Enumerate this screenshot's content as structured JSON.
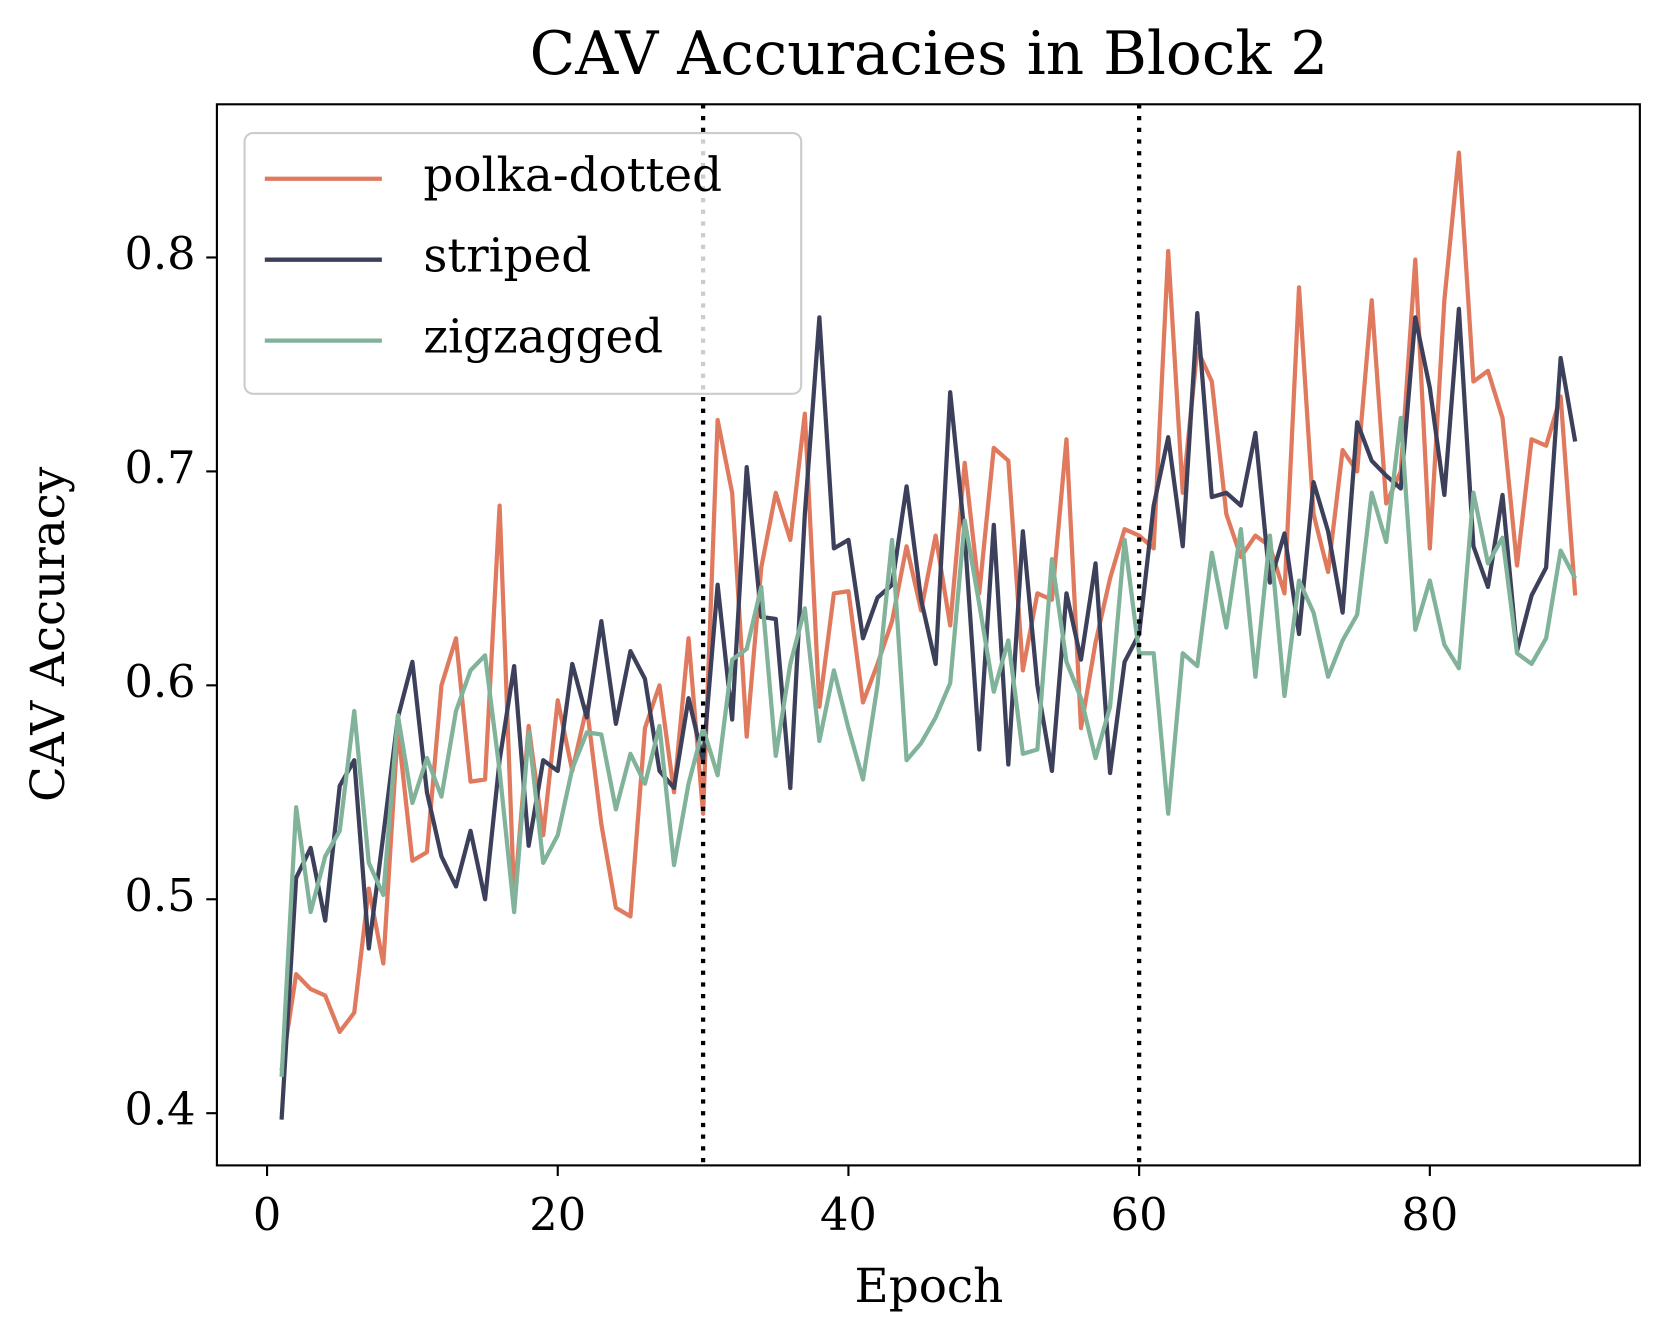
{
  "chart_data": {
    "type": "line",
    "title": "CAV Accuracies in Block 2",
    "x_label": "Epoch",
    "y_label": "CAV Accuracy",
    "x": [
      1,
      2,
      3,
      4,
      5,
      6,
      7,
      8,
      9,
      10,
      11,
      12,
      13,
      14,
      15,
      16,
      17,
      18,
      19,
      20,
      21,
      22,
      23,
      24,
      25,
      26,
      27,
      28,
      29,
      30,
      31,
      32,
      33,
      34,
      35,
      36,
      37,
      38,
      39,
      40,
      41,
      42,
      43,
      44,
      45,
      46,
      47,
      48,
      49,
      50,
      51,
      52,
      53,
      54,
      55,
      56,
      57,
      58,
      59,
      60,
      61,
      62,
      63,
      64,
      65,
      66,
      67,
      68,
      69,
      70,
      71,
      72,
      73,
      74,
      75,
      76,
      77,
      78,
      79,
      80,
      81,
      82,
      83,
      84,
      85,
      86,
      87,
      88,
      89,
      90
    ],
    "series": [
      {
        "name": "polka-dotted",
        "color": "#e07a5f",
        "values": [
          0.42,
          0.465,
          0.458,
          0.455,
          0.438,
          0.447,
          0.505,
          0.47,
          0.58,
          0.518,
          0.522,
          0.6,
          0.622,
          0.555,
          0.556,
          0.684,
          0.5,
          0.581,
          0.53,
          0.593,
          0.56,
          0.59,
          0.535,
          0.496,
          0.492,
          0.58,
          0.6,
          0.55,
          0.622,
          0.54,
          0.724,
          0.69,
          0.576,
          0.655,
          0.69,
          0.668,
          0.727,
          0.59,
          0.643,
          0.644,
          0.592,
          0.61,
          0.63,
          0.665,
          0.635,
          0.67,
          0.628,
          0.704,
          0.643,
          0.711,
          0.705,
          0.607,
          0.643,
          0.64,
          0.715,
          0.58,
          0.62,
          0.65,
          0.673,
          0.67,
          0.664,
          0.803,
          0.69,
          0.757,
          0.742,
          0.68,
          0.66,
          0.67,
          0.665,
          0.643,
          0.786,
          0.68,
          0.653,
          0.71,
          0.7,
          0.78,
          0.685,
          0.7,
          0.799,
          0.664,
          0.78,
          0.849,
          0.742,
          0.747,
          0.725,
          0.656,
          0.715,
          0.712,
          0.735,
          0.642
        ]
      },
      {
        "name": "striped",
        "color": "#3d405b",
        "values": [
          0.397,
          0.51,
          0.524,
          0.49,
          0.553,
          0.565,
          0.477,
          0.53,
          0.585,
          0.611,
          0.55,
          0.52,
          0.506,
          0.532,
          0.5,
          0.565,
          0.609,
          0.525,
          0.565,
          0.56,
          0.61,
          0.585,
          0.63,
          0.582,
          0.616,
          0.603,
          0.56,
          0.552,
          0.594,
          0.565,
          0.647,
          0.584,
          0.702,
          0.632,
          0.631,
          0.552,
          0.68,
          0.772,
          0.664,
          0.668,
          0.622,
          0.641,
          0.647,
          0.693,
          0.64,
          0.61,
          0.737,
          0.67,
          0.57,
          0.675,
          0.563,
          0.672,
          0.6,
          0.56,
          0.643,
          0.612,
          0.657,
          0.559,
          0.611,
          0.624,
          0.684,
          0.716,
          0.665,
          0.774,
          0.688,
          0.69,
          0.684,
          0.718,
          0.648,
          0.671,
          0.624,
          0.695,
          0.672,
          0.634,
          0.723,
          0.705,
          0.698,
          0.692,
          0.772,
          0.739,
          0.689,
          0.776,
          0.665,
          0.646,
          0.689,
          0.616,
          0.642,
          0.655,
          0.753,
          0.714
        ]
      },
      {
        "name": "zigzagged",
        "color": "#81b29a",
        "values": [
          0.417,
          0.543,
          0.494,
          0.52,
          0.532,
          0.588,
          0.517,
          0.502,
          0.586,
          0.545,
          0.566,
          0.548,
          0.588,
          0.607,
          0.614,
          0.56,
          0.494,
          0.578,
          0.517,
          0.53,
          0.561,
          0.578,
          0.577,
          0.542,
          0.568,
          0.554,
          0.581,
          0.516,
          0.554,
          0.58,
          0.558,
          0.612,
          0.617,
          0.646,
          0.567,
          0.61,
          0.636,
          0.574,
          0.607,
          0.58,
          0.556,
          0.6,
          0.668,
          0.565,
          0.573,
          0.585,
          0.601,
          0.677,
          0.638,
          0.597,
          0.621,
          0.568,
          0.57,
          0.659,
          0.611,
          0.594,
          0.566,
          0.59,
          0.668,
          0.615,
          0.615,
          0.54,
          0.615,
          0.609,
          0.662,
          0.627,
          0.673,
          0.604,
          0.67,
          0.595,
          0.649,
          0.634,
          0.604,
          0.621,
          0.633,
          0.69,
          0.667,
          0.725,
          0.626,
          0.649,
          0.619,
          0.608,
          0.69,
          0.657,
          0.669,
          0.615,
          0.61,
          0.622,
          0.663,
          0.65
        ]
      }
    ],
    "vlines": [
      30,
      60
    ],
    "xlim": [
      -3.45,
      94.45
    ],
    "xticks": [
      0,
      20,
      40,
      60,
      80
    ],
    "ylim": [
      0.3756,
      0.8716
    ],
    "yticks": [
      0.4,
      0.5,
      0.6,
      0.7,
      0.8
    ],
    "legend": "upper left",
    "grid": false
  }
}
